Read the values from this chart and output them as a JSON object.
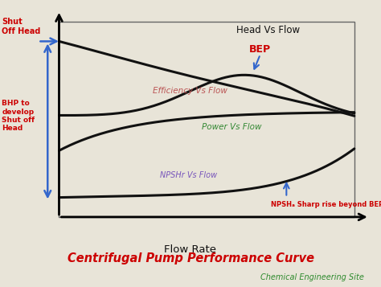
{
  "title": "Centrifugal Pump Performance Curve",
  "subtitle": "Chemical Engineering Site",
  "title_color": "#cc0000",
  "subtitle_color": "#2d8a2d",
  "bg_color": "#e8e4d8",
  "plot_bg_color": "#f0ece0",
  "border_color": "#666666",
  "curve_color": "#111111",
  "curve_linewidth": 2.2,
  "label_head": "Head Vs Flow",
  "label_efficiency": "Efficiency Vs Flow",
  "label_power": "Power Vs Flow",
  "label_npshr": "NPSHr Vs Flow",
  "label_flow": "Flow Rate",
  "color_head": "#111111",
  "color_efficiency": "#bb5555",
  "color_power": "#338833",
  "color_npshr": "#7755bb",
  "color_flow": "#111111",
  "shut_off_head_text": "Shut\nOff Head",
  "shut_off_head_color": "#cc0000",
  "bep_text": "BEP",
  "bep_color": "#cc0000",
  "bhp_text": "BHP to\ndevelop\nShut off\nHead",
  "bhp_color": "#cc0000",
  "npsh_rise_text": "NPSHₐ Sharp rise beyond BEP",
  "npsh_rise_color": "#cc0000",
  "arrow_color": "#3366cc"
}
